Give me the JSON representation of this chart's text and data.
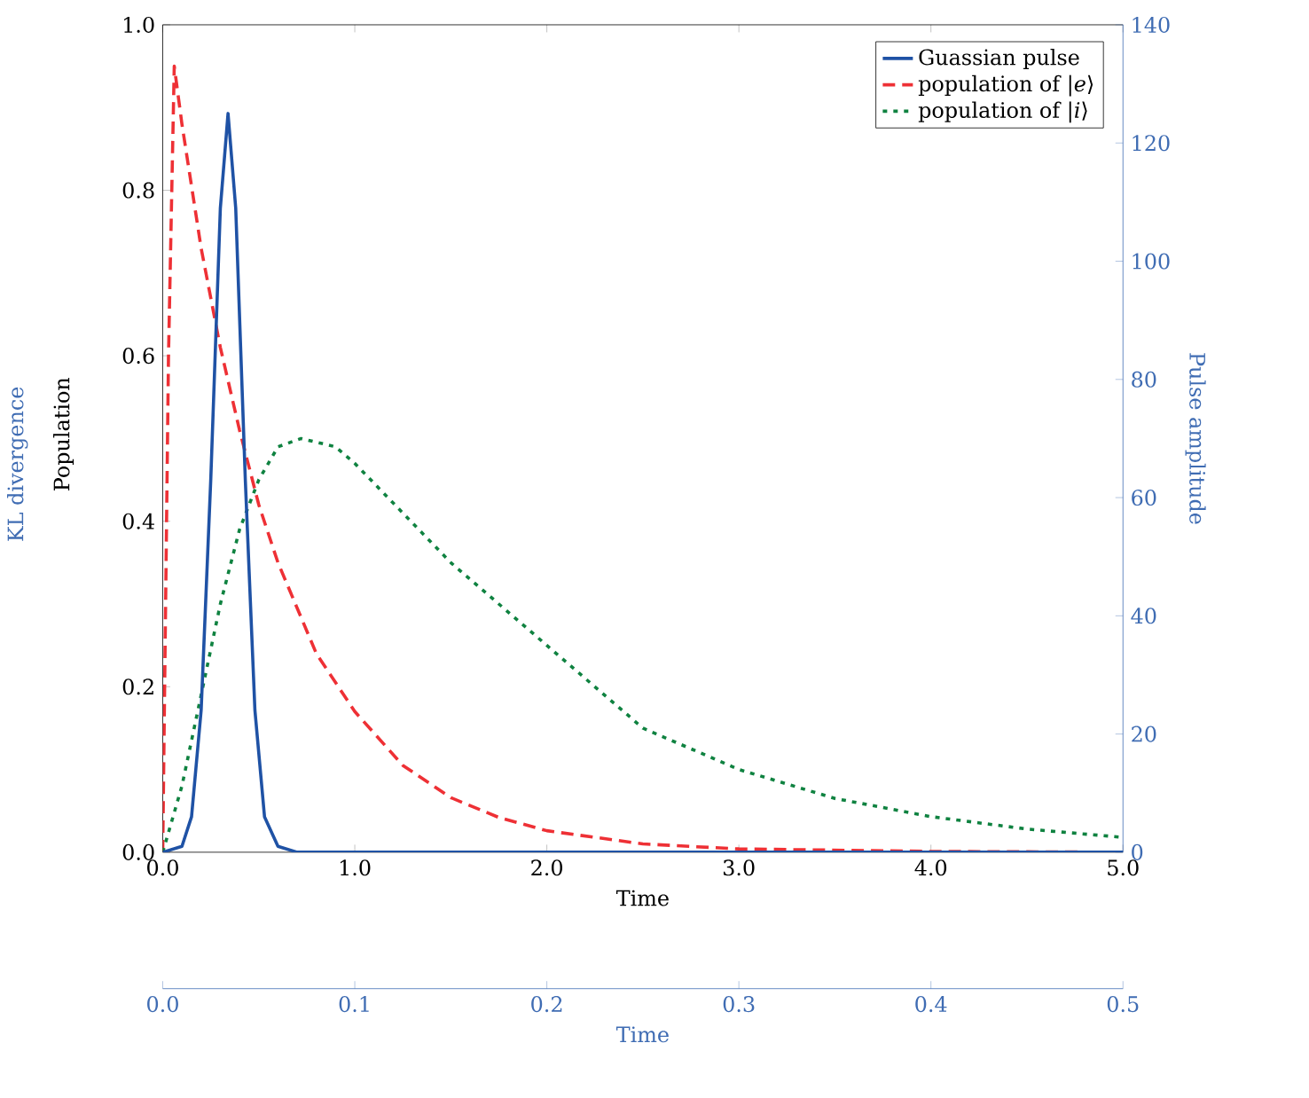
{
  "chart_data": {
    "type": "line",
    "xlabel": "Time",
    "ylabel": "Population",
    "y2label": "Pulse amplitude",
    "x2label": "Time",
    "annotations": [
      "KL divergence"
    ],
    "xlim": [
      0,
      5
    ],
    "xticks": [
      {
        "value": 0,
        "label": "0.0"
      },
      {
        "value": 1,
        "label": "1.0"
      },
      {
        "value": 2,
        "label": "2.0"
      },
      {
        "value": 3,
        "label": "3.0"
      },
      {
        "value": 4,
        "label": "4.0"
      },
      {
        "value": 5,
        "label": "5.0"
      }
    ],
    "ylim": [
      0,
      1
    ],
    "yticks": [
      {
        "value": 0,
        "label": "0.0"
      },
      {
        "value": 0.2,
        "label": "0.2"
      },
      {
        "value": 0.4,
        "label": "0.4"
      },
      {
        "value": 0.6,
        "label": "0.6"
      },
      {
        "value": 0.8,
        "label": "0.8"
      },
      {
        "value": 1,
        "label": "1.0"
      }
    ],
    "y2lim": [
      0,
      140
    ],
    "y2ticks": [
      0,
      20,
      40,
      60,
      80,
      100,
      120,
      140
    ],
    "x2lim": [
      0,
      0.5
    ],
    "x2ticks": [
      {
        "value": 0,
        "label": "0.0"
      },
      {
        "value": 0.1,
        "label": "0.1"
      },
      {
        "value": 0.2,
        "label": "0.2"
      },
      {
        "value": 0.3,
        "label": "0.3"
      },
      {
        "value": 0.4,
        "label": "0.4"
      },
      {
        "value": 0.5,
        "label": "0.5"
      }
    ],
    "legend": "top right",
    "grid": false,
    "series": [
      {
        "name": "Guassian pulse",
        "color": "#1f52a5",
        "axis": "y2",
        "line_style": "solid",
        "x": [
          0,
          0.1,
          0.15,
          0.2,
          0.25,
          0.3,
          0.34,
          0.38,
          0.43,
          0.48,
          0.53,
          0.6,
          0.7,
          5.0
        ],
        "values": [
          0,
          1,
          6,
          24,
          63,
          109,
          125,
          109,
          63,
          24,
          6,
          1,
          0,
          0
        ]
      },
      {
        "name": "population of |*e*⟩",
        "color": "#ee3035",
        "line_style": "dashed",
        "x": [
          0,
          0.03,
          0.06,
          0.1,
          0.2,
          0.3,
          0.4,
          0.5,
          0.6,
          0.8,
          1.0,
          1.25,
          1.5,
          1.75,
          2.0,
          2.5,
          3.0,
          4.0,
          5.0
        ],
        "values": [
          0,
          0.6,
          0.95,
          0.88,
          0.73,
          0.61,
          0.51,
          0.42,
          0.35,
          0.24,
          0.17,
          0.105,
          0.066,
          0.042,
          0.026,
          0.01,
          0.004,
          0.001,
          0
        ]
      },
      {
        "name": "population of |*i*⟩",
        "color": "#0f8240",
        "line_style": "dotted",
        "x": [
          0,
          0.1,
          0.2,
          0.3,
          0.4,
          0.5,
          0.6,
          0.72,
          0.9,
          1.0,
          1.25,
          1.5,
          1.75,
          2.0,
          2.5,
          3.0,
          3.5,
          4.0,
          4.5,
          5.0
        ],
        "values": [
          0,
          0.08,
          0.19,
          0.3,
          0.39,
          0.45,
          0.49,
          0.5,
          0.49,
          0.47,
          0.41,
          0.35,
          0.3,
          0.25,
          0.15,
          0.1,
          0.065,
          0.043,
          0.028,
          0.018
        ]
      }
    ]
  }
}
